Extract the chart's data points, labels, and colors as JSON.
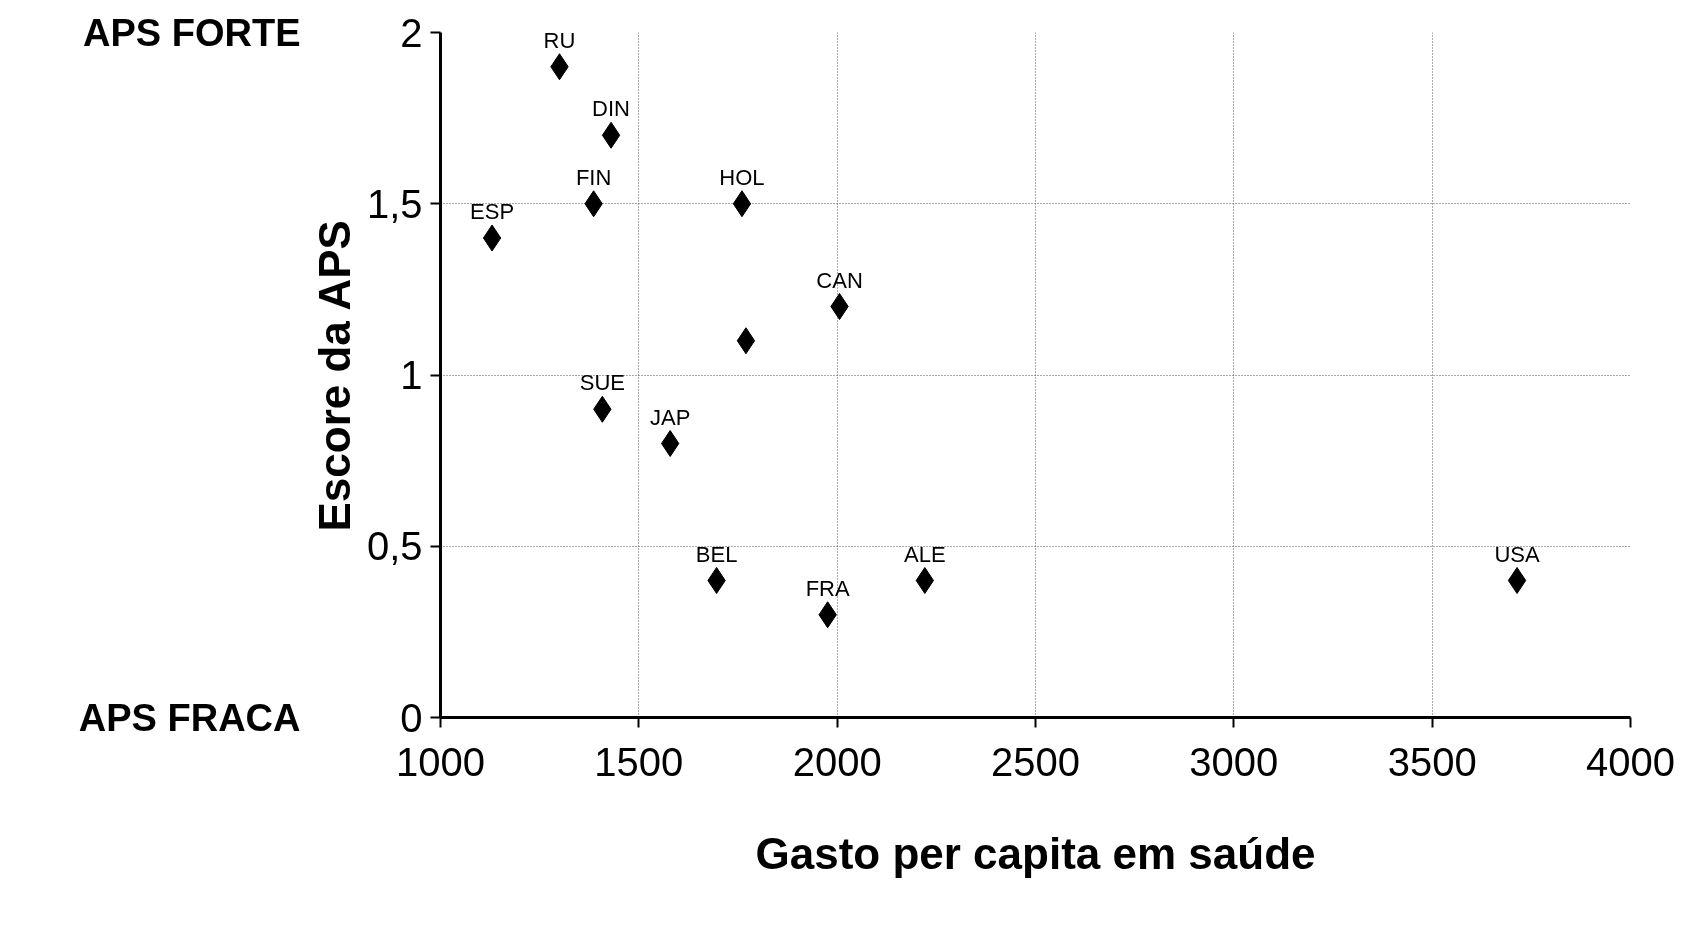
{
  "chart_data": {
    "type": "scatter",
    "xlabel": "Gasto per capita em saúde",
    "ylabel": "Escore da APS",
    "x": [
      1300,
      1430,
      1130,
      1386,
      1760,
      2006,
      1770,
      1408,
      1579,
      1696,
      1976,
      2221,
      3714
    ],
    "values": [
      1.9,
      1.7,
      1.4,
      1.5,
      1.5,
      1.2,
      1.1,
      0.9,
      0.8,
      0.4,
      0.3,
      0.4,
      0.4
    ],
    "color": "#000000",
    "marker": "diamond",
    "grid": true,
    "xlim": [
      1000,
      4000
    ],
    "xticks": [
      1000,
      1500,
      2000,
      2500,
      3000,
      3500,
      4000
    ],
    "ylim": [
      0,
      2
    ],
    "yticks": [
      0,
      {
        "value": 0.5,
        "label": "0,5"
      },
      1,
      {
        "value": 1.5,
        "label": "1,5"
      },
      2
    ],
    "annotations": [
      {
        "text": "RU",
        "x": 1300,
        "y": 1.9
      },
      {
        "text": "DIN",
        "x": 1430,
        "y": 1.7
      },
      {
        "text": "ESP",
        "x": 1130,
        "y": 1.4
      },
      {
        "text": "FIN",
        "x": 1386,
        "y": 1.5
      },
      {
        "text": "HOL",
        "x": 1760,
        "y": 1.5
      },
      {
        "text": "CAN",
        "x": 2006,
        "y": 1.2
      },
      {
        "text": "SUE",
        "x": 1408,
        "y": 0.9
      },
      {
        "text": "JAP",
        "x": 1579,
        "y": 0.8
      },
      {
        "text": "BEL",
        "x": 1696,
        "y": 0.4
      },
      {
        "text": "FRA",
        "x": 1976,
        "y": 0.3
      },
      {
        "text": "ALE",
        "x": 2221,
        "y": 0.4
      },
      {
        "text": "USA",
        "x": 3714,
        "y": 0.4
      },
      "APS FORTE",
      "APS FRACA"
    ]
  }
}
